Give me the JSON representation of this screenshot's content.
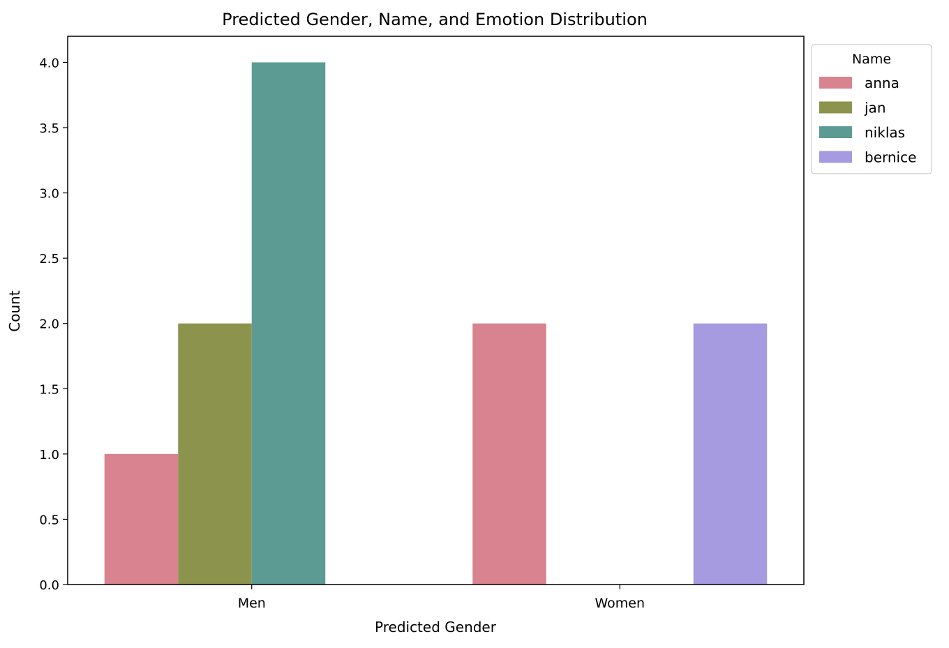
{
  "chart_data": {
    "type": "bar",
    "title": "Predicted Gender, Name, and Emotion Distribution",
    "xlabel": "Predicted Gender",
    "ylabel": "Count",
    "categories": [
      "Men",
      "Women"
    ],
    "ylim": [
      0,
      4.2
    ],
    "yticks": [
      "0.0",
      "0.5",
      "1.0",
      "1.5",
      "2.0",
      "2.5",
      "3.0",
      "3.5",
      "4.0"
    ],
    "grid": false,
    "legend": {
      "title": "Name",
      "placement": "upper-right-outside"
    },
    "series": [
      {
        "name": "anna",
        "color": "#d8838f",
        "values": [
          1,
          2
        ]
      },
      {
        "name": "jan",
        "color": "#8b934c",
        "values": [
          2,
          0
        ]
      },
      {
        "name": "niklas",
        "color": "#5c9a94",
        "values": [
          4,
          0
        ]
      },
      {
        "name": "bernice",
        "color": "#a69ae0",
        "values": [
          0,
          2
        ]
      }
    ]
  }
}
